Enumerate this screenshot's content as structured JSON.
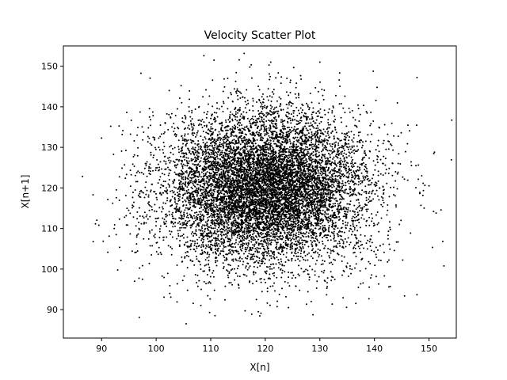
{
  "chart_data": {
    "type": "scatter",
    "title": "Velocity Scatter Plot",
    "xlabel": "X[n]",
    "ylabel": "X[n+1]",
    "xlim": [
      83,
      155
    ],
    "ylim": [
      83,
      155
    ],
    "xticks": [
      90,
      100,
      110,
      120,
      130,
      140,
      150
    ],
    "yticks": [
      90,
      100,
      110,
      120,
      130,
      140,
      150
    ],
    "grid": false,
    "legend": "none",
    "point_color": "#000000",
    "point_count": 10000,
    "distribution": {
      "kind": "normal",
      "x_mean": 120,
      "y_mean": 120,
      "x_std": 9.5,
      "y_std": 9.5,
      "seed": 12345
    },
    "series": [
      {
        "points": [
          [
            86.5,
            122.8
          ],
          [
            89.5,
            110.8
          ],
          [
            90.0,
            132.3
          ],
          [
            105.5,
            86.5
          ],
          [
            109.8,
            89.3
          ],
          [
            116.3,
            89.7
          ],
          [
            110.6,
            151.5
          ],
          [
            121.0,
            151.0
          ],
          [
            130.0,
            151.0
          ],
          [
            147.8,
            147.2
          ],
          [
            151.3,
            113.8
          ],
          [
            151.0,
            128.8
          ],
          [
            150.0,
            120.5
          ],
          [
            97.5,
            97.5
          ],
          [
            102.5,
            94.0
          ]
        ]
      }
    ]
  }
}
